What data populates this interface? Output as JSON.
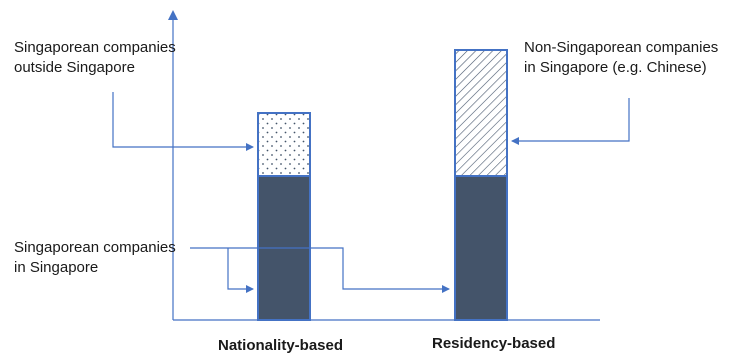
{
  "labels": {
    "singaporean_outside": [
      "Singaporean companies",
      "outside Singapore"
    ],
    "non_singaporean_in": [
      "Non-Singaporean companies",
      "in Singapore (e.g. Chinese)"
    ],
    "singaporean_in": [
      "Singaporean companies",
      "in Singapore"
    ]
  },
  "categories": [
    "Nationality-based",
    "Residency-based"
  ],
  "colors": {
    "axis": "#4472c4",
    "bar_fill": "#44546a",
    "bar_border": "#4472c4",
    "pattern": "#44546a"
  },
  "segments": {
    "nationality_based": [
      "Singaporean companies in Singapore",
      "Singaporean companies outside Singapore"
    ],
    "residency_based": [
      "Singaporean companies in Singapore",
      "Non-Singaporean companies in Singapore (e.g. Chinese)"
    ]
  },
  "icons": [
    "dot-pattern",
    "diagonal-hatch-pattern",
    "arrow"
  ]
}
